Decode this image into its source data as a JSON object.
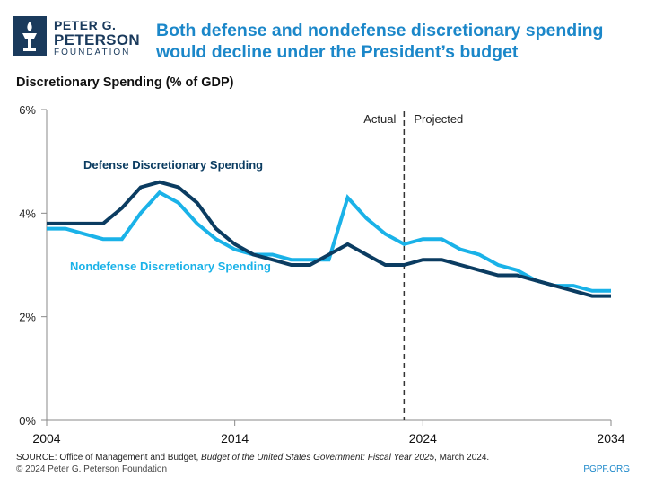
{
  "header": {
    "logo_line1": "PETER G.",
    "logo_line2": "PETERSON",
    "logo_line3": "FOUNDATION",
    "title": "Both defense and nondefense discretionary spending would decline under the President’s budget"
  },
  "colors": {
    "defense": "#0b3c61",
    "nondefense": "#1ab2e8",
    "title": "#1b87c9",
    "axis": "#888888"
  },
  "chart_data": {
    "type": "line",
    "title": "Discretionary Spending (% of GDP)",
    "x": [
      2004,
      2005,
      2006,
      2007,
      2008,
      2009,
      2010,
      2011,
      2012,
      2013,
      2014,
      2015,
      2016,
      2017,
      2018,
      2019,
      2020,
      2021,
      2022,
      2023,
      2024,
      2025,
      2026,
      2027,
      2028,
      2029,
      2030,
      2031,
      2032,
      2033,
      2034
    ],
    "series": [
      {
        "name": "Defense Discretionary Spending",
        "values": [
          3.8,
          3.8,
          3.8,
          3.8,
          4.1,
          4.5,
          4.6,
          4.5,
          4.2,
          3.7,
          3.4,
          3.2,
          3.1,
          3.0,
          3.0,
          3.2,
          3.4,
          3.2,
          3.0,
          3.0,
          3.1,
          3.1,
          3.0,
          2.9,
          2.8,
          2.8,
          2.7,
          2.6,
          2.5,
          2.4,
          2.4
        ]
      },
      {
        "name": "Nondefense Discretionary Spending",
        "values": [
          3.7,
          3.7,
          3.6,
          3.5,
          3.5,
          4.0,
          4.4,
          4.2,
          3.8,
          3.5,
          3.3,
          3.2,
          3.2,
          3.1,
          3.1,
          3.1,
          4.3,
          3.9,
          3.6,
          3.4,
          3.5,
          3.5,
          3.3,
          3.2,
          3.0,
          2.9,
          2.7,
          2.6,
          2.6,
          2.5,
          2.5
        ]
      }
    ],
    "ylim": [
      0,
      6
    ],
    "yticks": [
      0,
      2,
      4,
      6
    ],
    "ytick_labels": [
      "0%",
      "2%",
      "4%",
      "6%"
    ],
    "xticks": [
      2004,
      2014,
      2024,
      2034
    ],
    "xtick_labels": [
      "2004",
      "2014",
      "2024",
      "2034"
    ],
    "divider_year": 2023,
    "annotations": {
      "actual": "Actual",
      "projected": "Projected"
    },
    "grid": false
  },
  "footer": {
    "source_prefix": "SOURCE: Office of Management and Budget, ",
    "source_italic": "Budget of the United States Government: Fiscal Year 2025",
    "source_suffix": ", March 2024.",
    "copyright": "© 2024 Peter G. Peterson Foundation",
    "site": "PGPF.ORG"
  }
}
